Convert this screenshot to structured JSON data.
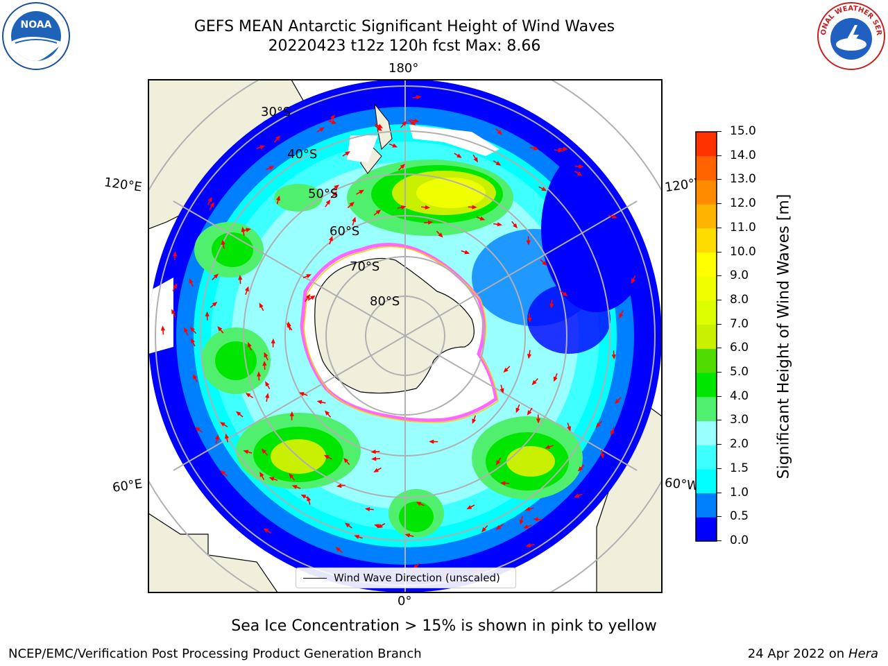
{
  "header": {
    "title_line1": "GEFS MEAN Antarctic Significant Height of Wind Waves",
    "title_line2": "20220423 t12z 120h fcst   Max: 8.66"
  },
  "logos": {
    "left": {
      "text": "NOAA",
      "ring_text": "NATIONAL OCEANIC AND ATMOSPHERIC ADMINISTRATION · U.S. DEPARTMENT OF COMMERCE"
    },
    "right": {
      "ring_text": "NATIONAL WEATHER SERVICE"
    }
  },
  "map": {
    "longitude_labels": [
      "180°",
      "120°E",
      "120°W",
      "60°E",
      "60°W",
      "0°"
    ],
    "latitude_labels": [
      "30°S",
      "40°S",
      "50°S",
      "60°S",
      "70°S",
      "80°S"
    ],
    "colors": {
      "land": "#efefdc",
      "sea_ice_edge": [
        "#ff66ff",
        "#ffcc00"
      ],
      "arrow": "#ff0000"
    }
  },
  "legend": {
    "label": "Wind Wave Direction (unscaled)"
  },
  "colorbar": {
    "label": "Significant Height of Wind Waves [m]",
    "ticks": [
      "0.0",
      "0.5",
      "1.0",
      "1.5",
      "2.0",
      "3.0",
      "4.0",
      "5.0",
      "6.0",
      "7.0",
      "8.0",
      "9.0",
      "10.0",
      "11.0",
      "12.0",
      "13.0",
      "14.0",
      "15.0"
    ],
    "colors": [
      "#0000ff",
      "#0080ff",
      "#00ffff",
      "#40ffff",
      "#99ffff",
      "#50f06e",
      "#00e600",
      "#50dc00",
      "#c8f000",
      "#dcff00",
      "#f0ff00",
      "#ffff00",
      "#ffdc00",
      "#ffb400",
      "#ff8c00",
      "#ff6400",
      "#ff3200"
    ]
  },
  "footer": {
    "note": "Sea Ice Concentration > 15% is shown in pink to yellow",
    "credit": "NCEP/EMC/Verification Post Processing Product Generation Branch",
    "date": "24 Apr 2022 on",
    "machine": "Hera"
  }
}
